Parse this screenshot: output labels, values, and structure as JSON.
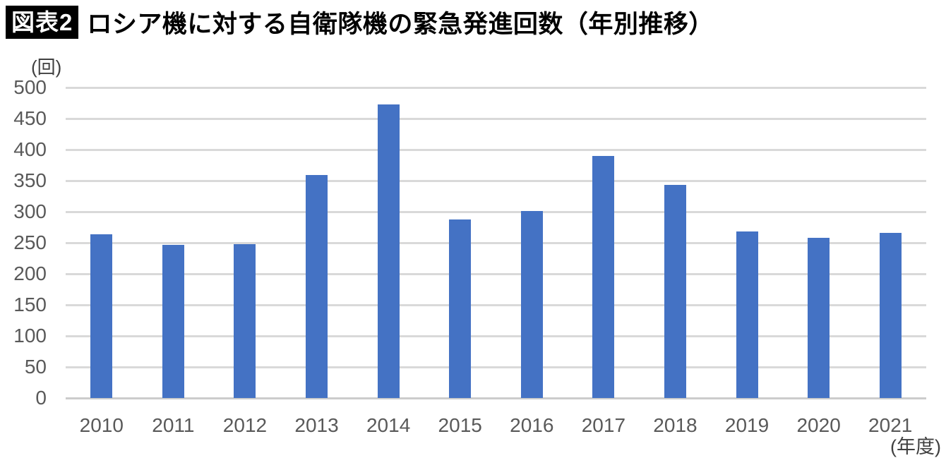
{
  "header": {
    "badge": "図表2",
    "title": "ロシア機に対する自衛隊機の緊急発進回数（年別推移）"
  },
  "chart_data": {
    "type": "bar",
    "title": "ロシア機に対する自衛隊機の緊急発進回数（年別推移）",
    "categories": [
      "2010",
      "2011",
      "2012",
      "2013",
      "2014",
      "2015",
      "2016",
      "2017",
      "2018",
      "2019",
      "2020",
      "2021"
    ],
    "values": [
      264,
      247,
      248,
      359,
      473,
      288,
      301,
      390,
      343,
      268,
      258,
      266
    ],
    "y_unit": "(回)",
    "x_unit": "(年度)",
    "ylim": [
      0,
      500
    ],
    "yticks": [
      0,
      50,
      100,
      150,
      200,
      250,
      300,
      350,
      400,
      450,
      500
    ],
    "grid": "horizontal",
    "legend": "none",
    "bar_color": "#4472C4",
    "gridline_color": "#D9D9D9",
    "axis_label_color": "#595959"
  }
}
